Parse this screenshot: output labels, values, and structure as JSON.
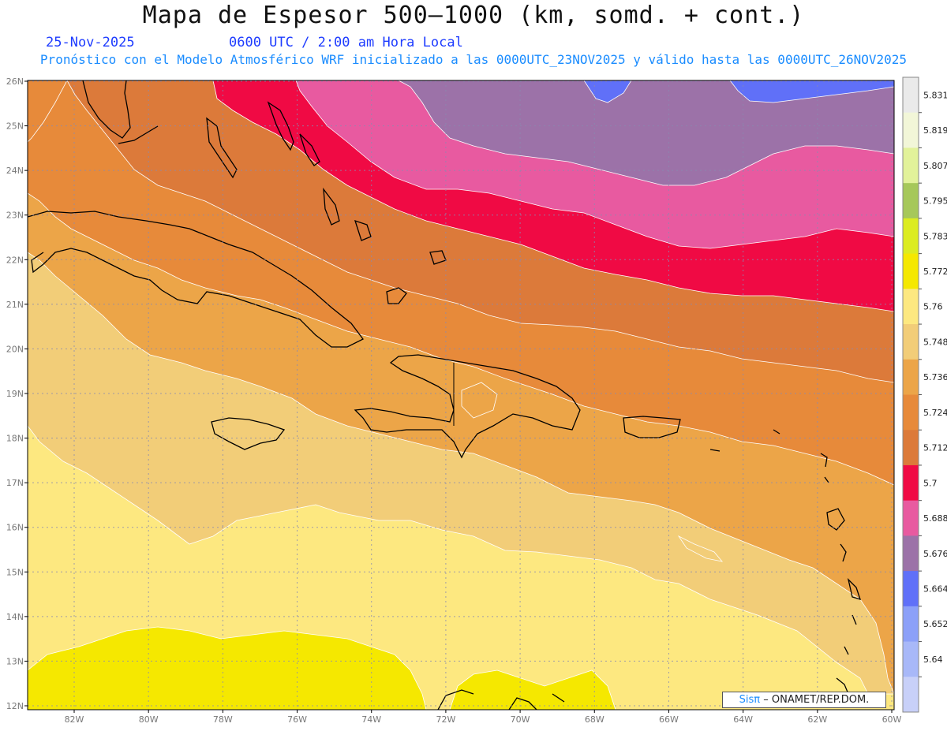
{
  "title": "Mapa de Espesor 500—1000 (km, somd. + cont.)",
  "date": "25-Nov-2025",
  "time_label": "0600 UTC / 2:00 am Hora Local",
  "forecast_info": "Pronóstico con el Modelo Atmosférico WRF inicializado a las 0000UTC_23NOV2025 y válido hasta las  0000UTC_26NOV2025",
  "credit": {
    "brand": "Sisπ",
    "org": "– ONAMET/REP.DOM."
  },
  "lat_labels": [
    "26N",
    "25N",
    "24N",
    "23N",
    "22N",
    "21N",
    "20N",
    "19N",
    "18N",
    "17N",
    "16N",
    "15N",
    "14N",
    "13N",
    "12N"
  ],
  "lon_labels": [
    "82W",
    "80W",
    "78W",
    "76W",
    "74W",
    "72W",
    "70W",
    "68W",
    "66W",
    "64W",
    "62W",
    "60W"
  ],
  "colorbar": {
    "labels": [
      "5.831",
      "5.819",
      "5.807",
      "5.795",
      "5.783",
      "5.772",
      "5.76",
      "5.748",
      "5.736",
      "5.724",
      "5.712",
      "5.7",
      "5.688",
      "5.676",
      "5.664",
      "5.652",
      "5.64"
    ],
    "colors": [
      "#eaeaea",
      "#f2f6d8",
      "#e2f29a",
      "#a6c85a",
      "#dcec20",
      "#f5e800",
      "#fde880",
      "#f2cd78",
      "#eca548",
      "#e78a3a",
      "#dc7a3a",
      "#f00a44",
      "#e85aa0",
      "#9c72a8",
      "#6070f8",
      "#8ca0f8",
      "#a8b8f8",
      "#c8d0f8"
    ]
  }
}
